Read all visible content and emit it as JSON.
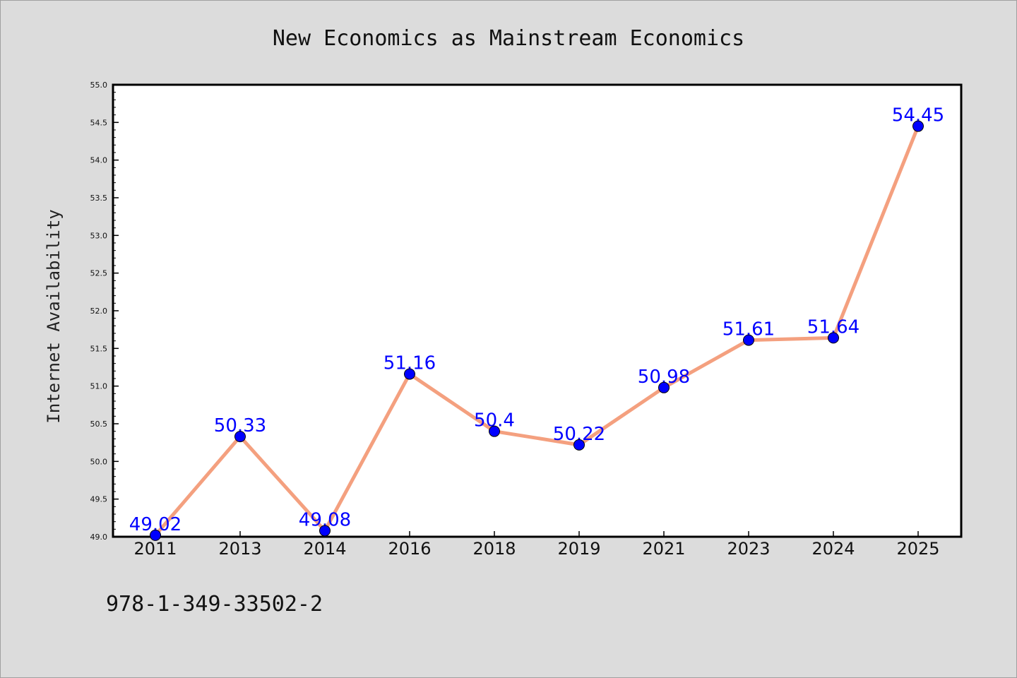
{
  "chart_data": {
    "type": "line",
    "title": "New Economics as Mainstream Economics",
    "xlabel": "",
    "ylabel": "Internet Availability",
    "categories": [
      "2011",
      "2013",
      "2014",
      "2016",
      "2018",
      "2019",
      "2021",
      "2023",
      "2024",
      "2025"
    ],
    "series": [
      {
        "values": [
          49.02,
          50.33,
          49.08,
          51.16,
          50.4,
          50.22,
          50.98,
          51.61,
          51.64,
          54.45
        ],
        "data_labels": [
          "49.02",
          "50.33",
          "49.08",
          "51.16",
          "50.4",
          "50.22",
          "50.98",
          "51.61",
          "51.64",
          "54.45"
        ]
      }
    ],
    "ylim": [
      49.0,
      55.0
    ],
    "yticks": [
      "49.0",
      "49.5",
      "50.0",
      "50.5",
      "51.0",
      "51.5",
      "52.0",
      "52.5",
      "53.0",
      "53.5",
      "54.0",
      "54.5",
      "55.0"
    ],
    "grid": false,
    "legend": "none",
    "colors": {
      "line": "#f4a07f",
      "marker": "#0000ff",
      "label": "#0000ff",
      "background": "#dcdcdc",
      "plot_background": "#ffffff"
    }
  },
  "footer": {
    "isbn": "978-1-349-33502-2"
  }
}
